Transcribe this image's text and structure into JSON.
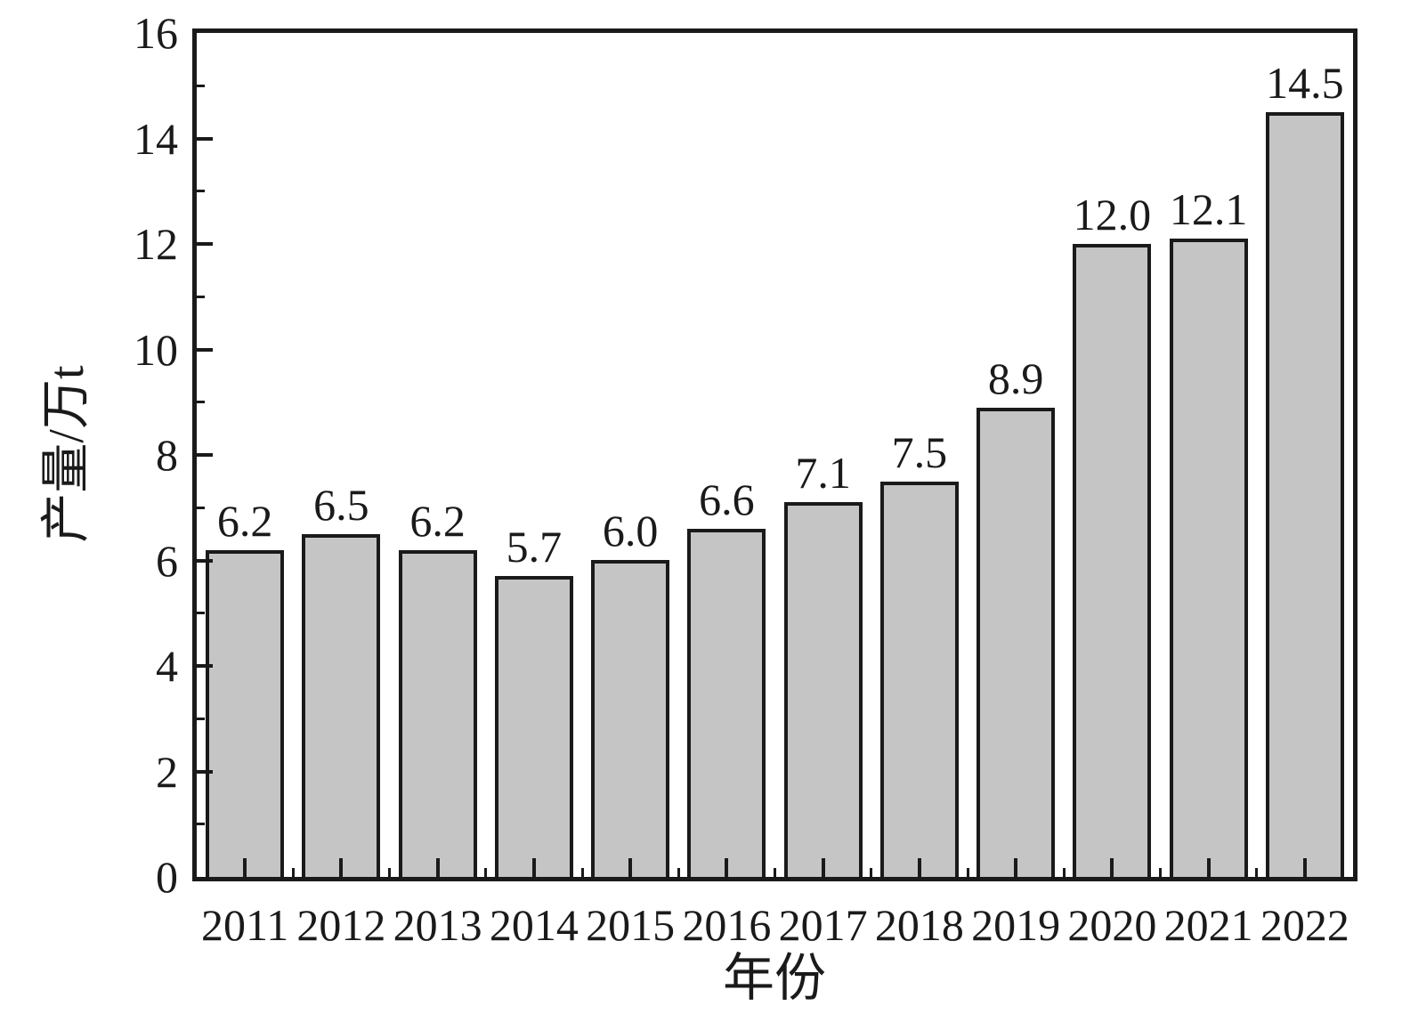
{
  "chart_data": {
    "type": "bar",
    "title": "",
    "xlabel": "年份",
    "ylabel": "产量/万t",
    "categories": [
      "2011",
      "2012",
      "2013",
      "2014",
      "2015",
      "2016",
      "2017",
      "2018",
      "2019",
      "2020",
      "2021",
      "2022"
    ],
    "values": [
      6.2,
      6.5,
      6.2,
      5.7,
      6.0,
      6.6,
      7.1,
      7.5,
      8.9,
      12.0,
      12.1,
      14.5
    ],
    "value_labels": [
      "6.2",
      "6.5",
      "6.2",
      "5.7",
      "6.0",
      "6.6",
      "7.1",
      "7.5",
      "8.9",
      "12.0",
      "12.1",
      "14.5"
    ],
    "ylim": [
      0,
      16
    ],
    "ytick_labels": [
      "0",
      "2",
      "4",
      "6",
      "8",
      "10",
      "12",
      "14",
      "16"
    ],
    "ytick_values": [
      0,
      2,
      4,
      6,
      8,
      10,
      12,
      14,
      16
    ],
    "yminor_values": [
      1,
      3,
      5,
      7,
      9,
      11,
      13,
      15
    ],
    "grid": false,
    "legend_position": "none",
    "bar_color": "#c5c5c5",
    "bar_border_color": "#1a1a1a",
    "axis_color": "#1a1a1a",
    "text_color": "#1a1a1a"
  }
}
